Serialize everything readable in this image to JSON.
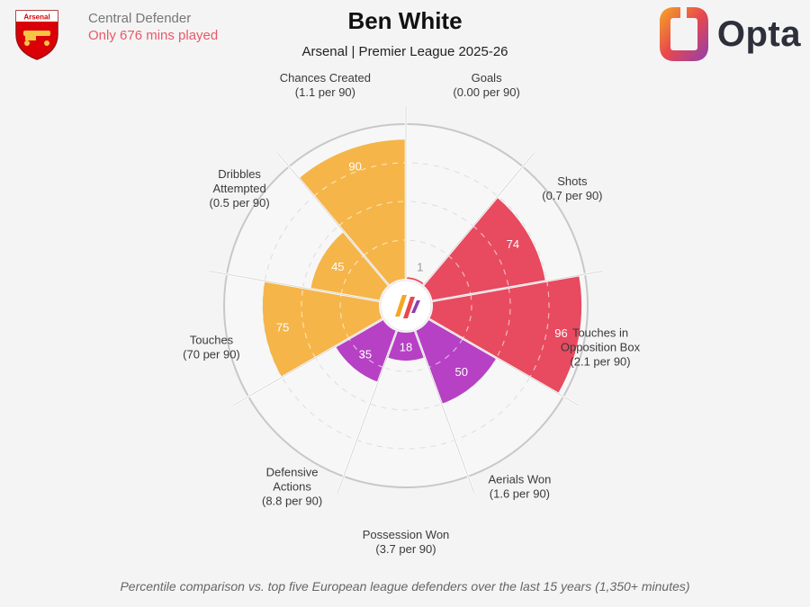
{
  "header": {
    "club_crest_text": "Arsenal",
    "position": "Central Defender",
    "minutes_note": "Only 676 mins played",
    "player_name": "Ben White",
    "subtitle": "Arsenal | Premier League 2025-26",
    "brand": "Opta"
  },
  "colors": {
    "attacking": "#e84a5f",
    "possession": "#f5b549",
    "defending": "#b641c4",
    "accent": "#e8596a"
  },
  "chart_data": {
    "type": "pie",
    "value_axis": {
      "min": 0,
      "max": 100,
      "unit": "percentile"
    },
    "segments": [
      {
        "label_lines": [
          "Goals",
          "(0.00 per 90)"
        ],
        "percentile": 1,
        "group": "attacking"
      },
      {
        "label_lines": [
          "Shots",
          "(0.7 per 90)"
        ],
        "percentile": 74,
        "group": "attacking"
      },
      {
        "label_lines": [
          "Touches in",
          "Opposition Box",
          "(2.1 per 90)"
        ],
        "percentile": 96,
        "group": "attacking"
      },
      {
        "label_lines": [
          "Aerials Won",
          "(1.6 per 90)"
        ],
        "percentile": 50,
        "group": "defending"
      },
      {
        "label_lines": [
          "Possession Won",
          "(3.7 per 90)"
        ],
        "percentile": 18,
        "group": "defending"
      },
      {
        "label_lines": [
          "Defensive",
          "Actions",
          "(8.8 per 90)"
        ],
        "percentile": 35,
        "group": "defending"
      },
      {
        "label_lines": [
          "Touches",
          "(70 per 90)"
        ],
        "percentile": 75,
        "group": "possession"
      },
      {
        "label_lines": [
          "Dribbles",
          "Attempted",
          "(0.5 per 90)"
        ],
        "percentile": 45,
        "group": "possession"
      },
      {
        "label_lines": [
          "Chances Created",
          "(1.1 per 90)"
        ],
        "percentile": 90,
        "group": "possession"
      }
    ]
  },
  "footer": {
    "note": "Percentile comparison vs. top five European league defenders over the last 15 years (1,350+ minutes)"
  }
}
